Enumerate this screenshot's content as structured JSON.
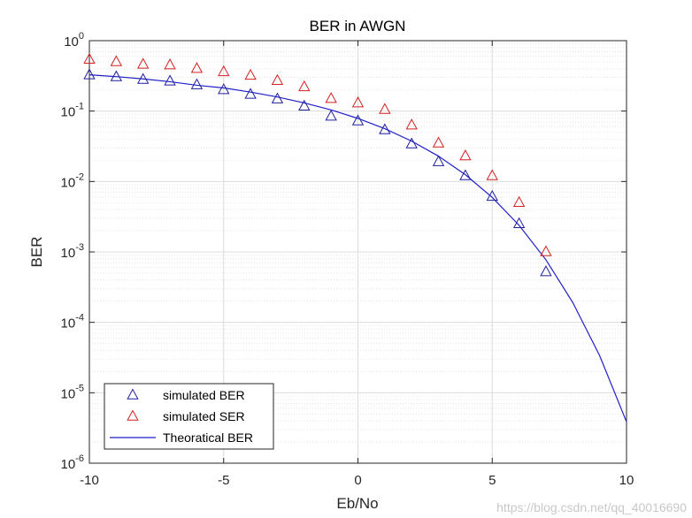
{
  "chart_data": {
    "type": "scatter",
    "title": "BER in AWGN",
    "xlabel": "Eb/No",
    "ylabel": "BER",
    "xlim": [
      -10,
      10
    ],
    "ylim": [
      1e-06,
      1
    ],
    "yscale": "log",
    "grid": true,
    "minor_grid": true,
    "legend_position": "bottom-left",
    "x_ticks": [
      "-10",
      "-5",
      "0",
      "5",
      "10"
    ],
    "x_tick_values": [
      -10,
      -5,
      0,
      5,
      10
    ],
    "y_tick_values": [
      1e-06,
      1e-05,
      0.0001,
      0.001,
      0.01,
      0.1,
      1
    ],
    "y_ticks": [
      {
        "base": "10",
        "exp": "-6"
      },
      {
        "base": "10",
        "exp": "-5"
      },
      {
        "base": "10",
        "exp": "-4"
      },
      {
        "base": "10",
        "exp": "-3"
      },
      {
        "base": "10",
        "exp": "-2"
      },
      {
        "base": "10",
        "exp": "-1"
      },
      {
        "base": "10",
        "exp": "0"
      }
    ],
    "series": [
      {
        "name": "simulated BER",
        "type": "scatter",
        "marker": "triangle",
        "color": "#1f1fa0",
        "x": [
          -10,
          -9,
          -8,
          -7,
          -6,
          -5,
          -4,
          -3,
          -2,
          -1,
          0,
          1,
          2,
          3,
          4,
          5,
          6,
          7
        ],
        "y": [
          0.325,
          0.305,
          0.28,
          0.265,
          0.235,
          0.2,
          0.172,
          0.148,
          0.117,
          0.084,
          0.072,
          0.054,
          0.034,
          0.019,
          0.012,
          0.0061,
          0.0025,
          0.00052
        ]
      },
      {
        "name": "simulated SER",
        "type": "scatter",
        "marker": "triangle",
        "color": "#d42020",
        "x": [
          -10,
          -9,
          -8,
          -7,
          -6,
          -5,
          -4,
          -3,
          -2,
          -1,
          0,
          1,
          2,
          3,
          4,
          5,
          6,
          7
        ],
        "y": [
          0.54,
          0.5,
          0.46,
          0.45,
          0.4,
          0.36,
          0.32,
          0.27,
          0.22,
          0.15,
          0.13,
          0.105,
          0.063,
          0.035,
          0.023,
          0.012,
          0.005,
          0.001
        ]
      },
      {
        "name": "Theoratical BER",
        "type": "line",
        "color": "#1f1fc8",
        "x": [
          -10,
          -9,
          -8,
          -7,
          -6,
          -5,
          -4,
          -3,
          -2,
          -1,
          0,
          1,
          2,
          3,
          4,
          5,
          6,
          7,
          8,
          9,
          10
        ],
        "y": [
          0.3274,
          0.3085,
          0.2866,
          0.2614,
          0.2326,
          0.2132,
          0.1861,
          0.1587,
          0.1306,
          0.104,
          0.0786,
          0.0563,
          0.0375,
          0.0229,
          0.0125,
          0.00595,
          0.00239,
          0.000773,
          0.000191,
          3.36e-05,
          3.87e-06
        ]
      }
    ]
  },
  "watermark": "https://blog.csdn.net/qq_40016690"
}
